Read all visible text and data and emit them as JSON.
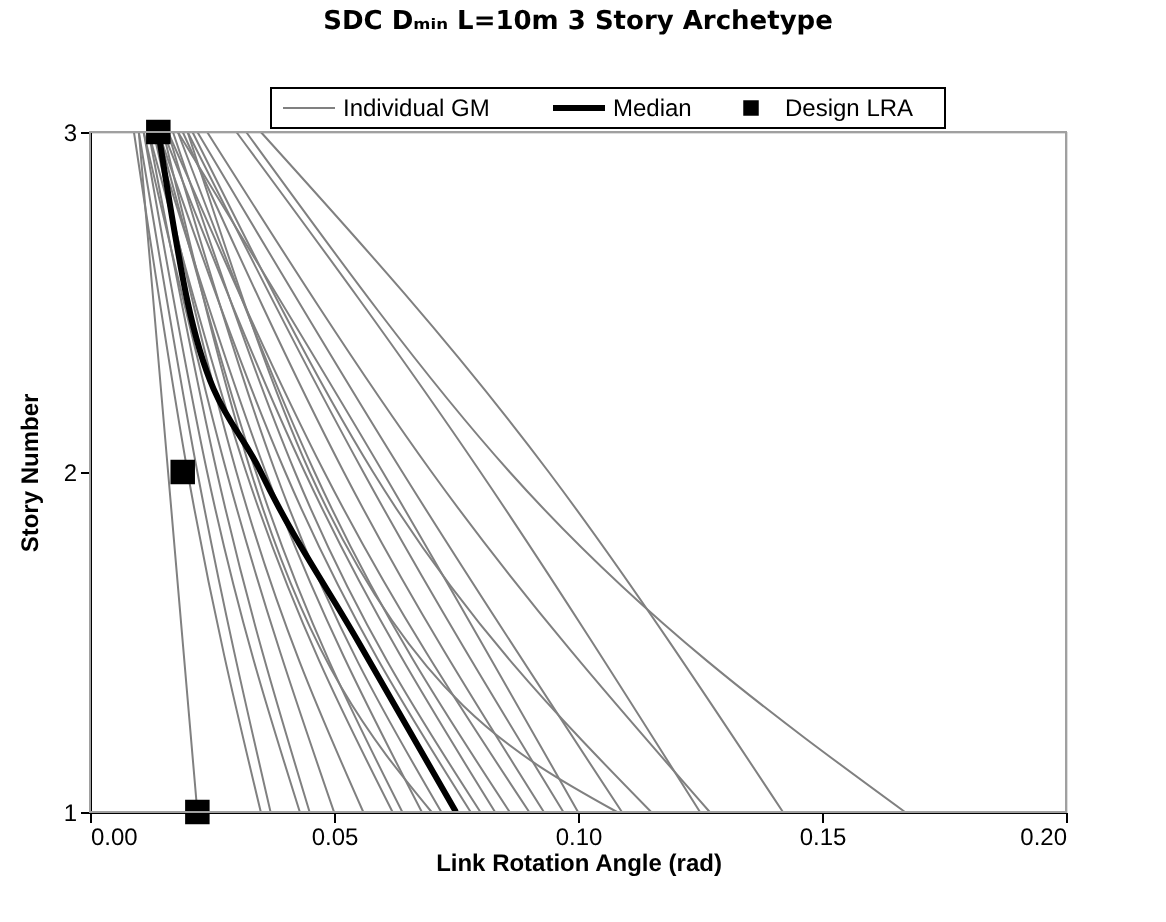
{
  "chart_data": {
    "type": "line",
    "title": "SDC Dₘᵢₙ    L=10m    3 Story Archetype",
    "xlabel": "Link Rotation Angle (rad)",
    "ylabel": "Story Number",
    "xlim": [
      0,
      0.2
    ],
    "xticks": [
      {
        "value": 0,
        "label": "0.00"
      },
      {
        "value": 0.05,
        "label": "0.05"
      },
      {
        "value": 0.1,
        "label": "0.10"
      },
      {
        "value": 0.15,
        "label": "0.15"
      },
      {
        "value": 0.2,
        "label": "0.20"
      }
    ],
    "ylim": [
      1,
      3
    ],
    "yticks": [
      1,
      2,
      3
    ],
    "grid": false,
    "legend": "top",
    "marker": "none",
    "line_style": "solid",
    "series": [
      {
        "name": "Individual GM",
        "color": "#808080",
        "x": [
          0.022,
          0.016,
          0.01
        ],
        "values": [
          1,
          2,
          3
        ]
      },
      {
        "color": "#808080",
        "x": [
          0.035,
          0.02,
          0.009
        ],
        "values": [
          1,
          2,
          3
        ]
      },
      {
        "color": "#808080",
        "x": [
          0.037,
          0.022,
          0.01
        ],
        "values": [
          1,
          2,
          3
        ]
      },
      {
        "color": "#808080",
        "x": [
          0.043,
          0.024,
          0.011
        ],
        "values": [
          1,
          2,
          3
        ]
      },
      {
        "color": "#808080",
        "x": [
          0.045,
          0.026,
          0.012
        ],
        "values": [
          1,
          2,
          3
        ]
      },
      {
        "color": "#808080",
        "x": [
          0.05,
          0.028,
          0.011
        ],
        "values": [
          1,
          2,
          3
        ]
      },
      {
        "color": "#808080",
        "x": [
          0.056,
          0.03,
          0.013
        ],
        "values": [
          1,
          2,
          3
        ]
      },
      {
        "color": "#808080",
        "x": [
          0.062,
          0.032,
          0.012
        ],
        "values": [
          1,
          2,
          3
        ]
      },
      {
        "color": "#808080",
        "x": [
          0.064,
          0.034,
          0.014
        ],
        "values": [
          1,
          2,
          3
        ]
      },
      {
        "color": "#808080",
        "x": [
          0.068,
          0.036,
          0.013
        ],
        "values": [
          1,
          2,
          3
        ]
      },
      {
        "color": "#808080",
        "x": [
          0.07,
          0.033,
          0.015
        ],
        "values": [
          1,
          2,
          3
        ]
      },
      {
        "color": "#808080",
        "x": [
          0.072,
          0.038,
          0.016
        ],
        "values": [
          1,
          2,
          3
        ]
      },
      {
        "color": "#808080",
        "x": [
          0.078,
          0.04,
          0.014
        ],
        "values": [
          1,
          2,
          3
        ]
      },
      {
        "color": "#808080",
        "x": [
          0.08,
          0.042,
          0.017
        ],
        "values": [
          1,
          2,
          3
        ]
      },
      {
        "color": "#808080",
        "x": [
          0.083,
          0.044,
          0.015
        ],
        "values": [
          1,
          2,
          3
        ]
      },
      {
        "color": "#808080",
        "x": [
          0.086,
          0.046,
          0.018
        ],
        "values": [
          1,
          2,
          3
        ]
      },
      {
        "color": "#808080",
        "x": [
          0.09,
          0.048,
          0.016
        ],
        "values": [
          1,
          2,
          3
        ]
      },
      {
        "color": "#808080",
        "x": [
          0.093,
          0.052,
          0.019
        ],
        "values": [
          1,
          2,
          3
        ]
      },
      {
        "color": "#808080",
        "x": [
          0.097,
          0.056,
          0.02
        ],
        "values": [
          1,
          2,
          3
        ]
      },
      {
        "color": "#808080",
        "x": [
          0.1,
          0.06,
          0.018
        ],
        "values": [
          1,
          2,
          3
        ]
      },
      {
        "color": "#808080",
        "x": [
          0.108,
          0.045,
          0.02
        ],
        "values": [
          1,
          2,
          3
        ]
      },
      {
        "color": "#808080",
        "x": [
          0.109,
          0.064,
          0.022
        ],
        "values": [
          1,
          2,
          3
        ]
      },
      {
        "color": "#808080",
        "x": [
          0.115,
          0.058,
          0.021
        ],
        "values": [
          1,
          2,
          3
        ]
      },
      {
        "color": "#808080",
        "x": [
          0.125,
          0.08,
          0.03
        ],
        "values": [
          1,
          2,
          3
        ]
      },
      {
        "color": "#808080",
        "x": [
          0.127,
          0.07,
          0.024
        ],
        "values": [
          1,
          2,
          3
        ]
      },
      {
        "color": "#808080",
        "x": [
          0.142,
          0.094,
          0.035
        ],
        "values": [
          1,
          2,
          3
        ]
      },
      {
        "color": "#808080",
        "x": [
          0.167,
          0.086,
          0.032
        ],
        "values": [
          1,
          2,
          3
        ]
      },
      {
        "name": "Median",
        "color": "#000000",
        "x": [
          0.075,
          0.055,
          0.035,
          0.02,
          0.014
        ],
        "values": [
          1,
          1.5,
          2,
          2.5,
          3
        ]
      },
      {
        "name": "Design LRA",
        "type": "scatter",
        "marker": "square",
        "color": "#000000",
        "x": [
          0.022,
          0.019,
          0.014
        ],
        "values": [
          1,
          2,
          3
        ]
      }
    ]
  }
}
